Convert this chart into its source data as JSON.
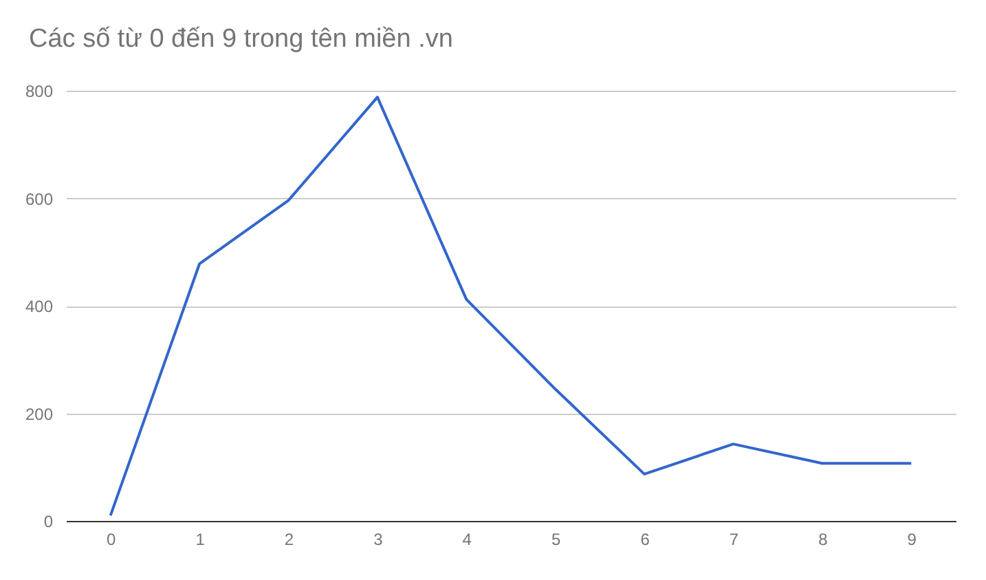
{
  "chart_data": {
    "type": "line",
    "title": "Các số từ 0 đến 9 trong tên miền .vn",
    "categories": [
      "0",
      "1",
      "2",
      "3",
      "4",
      "5",
      "6",
      "7",
      "8",
      "9"
    ],
    "series": [
      {
        "color": "#3366cc",
        "values": [
          10,
          478,
          596,
          788,
          412,
          245,
          87,
          143,
          107,
          107
        ]
      }
    ],
    "ylim": [
      0,
      800
    ],
    "yticks": [
      0,
      200,
      400,
      600,
      800
    ],
    "grid": "y",
    "marker": "none"
  }
}
